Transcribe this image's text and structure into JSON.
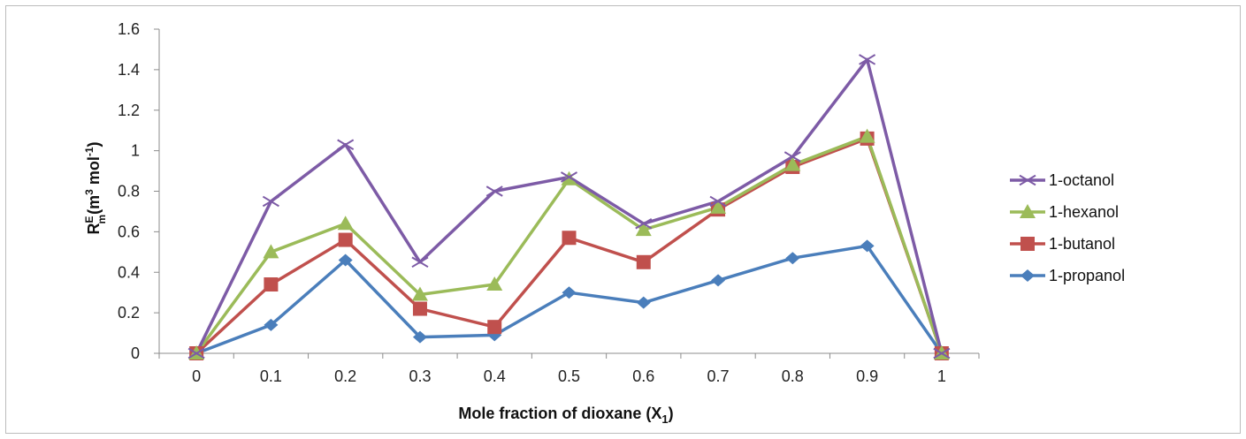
{
  "chart_data": {
    "type": "line",
    "x": [
      "0",
      "0.1",
      "0.2",
      "0.3",
      "0.4",
      "0.5",
      "0.6",
      "0.7",
      "0.8",
      "0.9",
      "1"
    ],
    "xlabel": {
      "main": "Mole fraction of dioxane (X",
      "sub": "1",
      "end": ")"
    },
    "ylabel": {
      "base": "R",
      "sup1": "E",
      "sub1": "m",
      "mid": "(m",
      "sup2": "3",
      "mid2": " mol",
      "sup3": "-1",
      "end": ")"
    },
    "ylim": [
      0,
      1.6
    ],
    "yticks": [
      "0",
      "0.2",
      "0.4",
      "0.6",
      "0.8",
      "1",
      "1.2",
      "1.4",
      "1.6"
    ],
    "legend_position": "right",
    "series": [
      {
        "name": "1-octanol",
        "color": "#7D5BA6",
        "marker": "x",
        "values": [
          0,
          0.75,
          1.03,
          0.45,
          0.8,
          0.87,
          0.64,
          0.75,
          0.97,
          1.45,
          0
        ]
      },
      {
        "name": "1-hexanol",
        "color": "#9BBB59",
        "marker": "triangle",
        "values": [
          0,
          0.5,
          0.64,
          0.29,
          0.34,
          0.86,
          0.61,
          0.72,
          0.93,
          1.07,
          0
        ]
      },
      {
        "name": "1-butanol",
        "color": "#C0504D",
        "marker": "square",
        "values": [
          0,
          0.34,
          0.56,
          0.22,
          0.13,
          0.57,
          0.45,
          0.71,
          0.92,
          1.06,
          0
        ]
      },
      {
        "name": "1-propanol",
        "color": "#4A7EBB",
        "marker": "diamond",
        "values": [
          0,
          0.14,
          0.46,
          0.08,
          0.09,
          0.3,
          0.25,
          0.36,
          0.47,
          0.53,
          0
        ]
      }
    ]
  }
}
